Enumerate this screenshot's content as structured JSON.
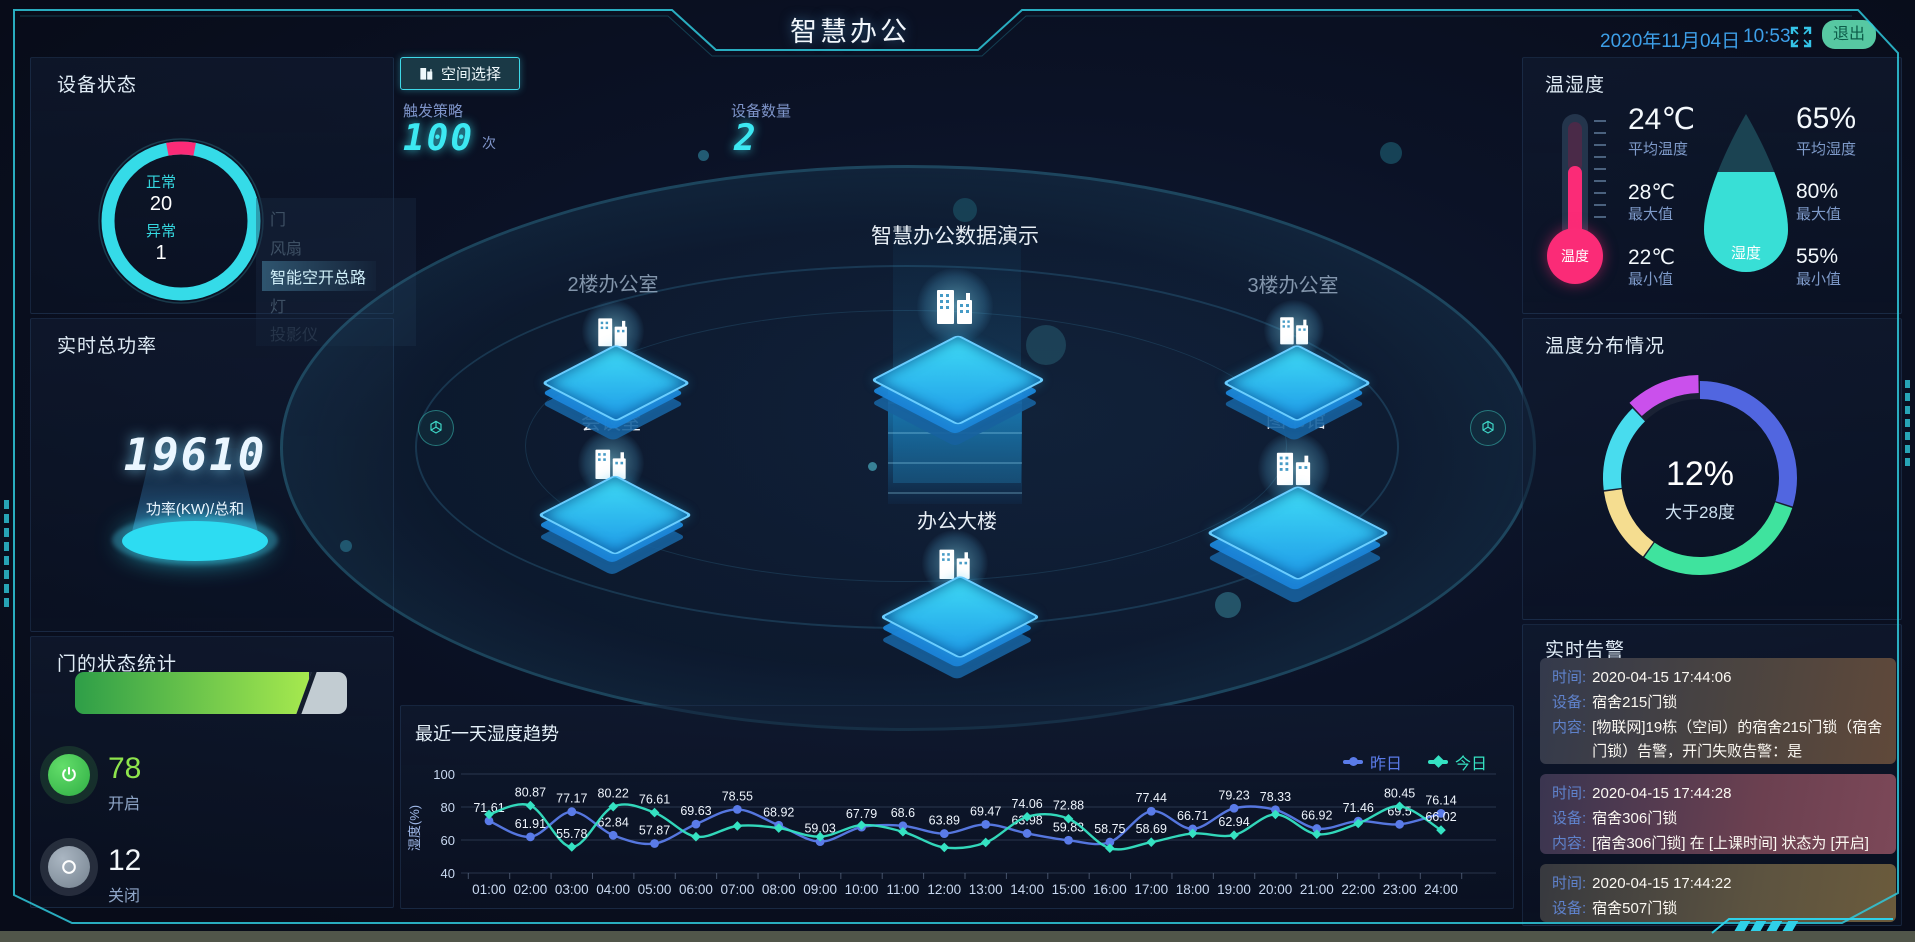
{
  "header": {
    "title": "智慧办公",
    "date": "2020年11月04日",
    "time": "10:53",
    "exit": "退出"
  },
  "left": {
    "device_status": {
      "title": "设备状态",
      "normal_label": "正常",
      "normal_value": "20",
      "abnormal_label": "异常",
      "abnormal_value": "1",
      "ring_color": "#35dbe8",
      "alert_color": "#fb2b77",
      "legend": [
        {
          "label": "门",
          "active": false
        },
        {
          "label": "风扇",
          "active": false
        },
        {
          "label": "智能空开总路",
          "active": true
        },
        {
          "label": "灯",
          "active": false
        },
        {
          "label": "投影仪",
          "active": false
        }
      ]
    },
    "power": {
      "title": "实时总功率",
      "value": "19610",
      "unit": "功率(KW)/总和"
    },
    "door_stats": {
      "title": "门的状态统计",
      "open_value": "78",
      "open_label": "开启",
      "closed_value": "12",
      "closed_label": "关闭"
    }
  },
  "center": {
    "space_button": "空间选择",
    "trigger_label": "触发策略",
    "trigger_value": "100",
    "trigger_unit": "次",
    "device_label": "设备数量",
    "device_value": "2",
    "nodes": {
      "main": "智慧办公数据演示",
      "floor2": "2楼办公室",
      "meeting": "会议室",
      "building": "办公大楼",
      "floor3": "3楼办公室",
      "library": "图书馆"
    }
  },
  "right": {
    "temp_humidity": {
      "title": "温湿度",
      "temp_badge": "温度",
      "humidity_badge": "湿度",
      "temp": {
        "avg": "24℃",
        "avg_label": "平均温度",
        "max": "28℃",
        "max_label": "最大值",
        "min": "22℃",
        "min_label": "最小值"
      },
      "humidity": {
        "avg": "65%",
        "avg_label": "平均湿度",
        "max": "80%",
        "max_label": "最大值",
        "min": "55%",
        "min_label": "最小值"
      }
    },
    "temp_distribution": {
      "title": "温度分布情况",
      "center_value": "12%",
      "center_label": "大于28度",
      "segments": [
        {
          "name": "below-range-1",
          "value": 30,
          "color": "#5166e0",
          "popped": false
        },
        {
          "name": "below-range-2",
          "value": 30,
          "color": "#3fe39e",
          "popped": false
        },
        {
          "name": "below-range-3",
          "value": 13,
          "color": "#f5dd90",
          "popped": false
        },
        {
          "name": "below-range-4",
          "value": 15,
          "color": "#48dcee",
          "popped": false
        },
        {
          "name": "above-28",
          "value": 12,
          "color": "#ca50ec",
          "popped": true
        }
      ]
    },
    "alerts": {
      "title": "实时告警",
      "time_label": "时间:",
      "device_label": "设备:",
      "content_label": "内容:",
      "items": [
        {
          "time": "2020-04-15 17:44:06",
          "device": "宿舍215门锁",
          "content": "[物联网]19栋（空间）的宿舍215门锁（宿舍门锁）告警，开门失败告警：是"
        },
        {
          "time": "2020-04-15 17:44:28",
          "device": "宿舍306门锁",
          "content": "[宿舍306门锁] 在 [上课时间] 状态为 [开启]"
        },
        {
          "time": "2020-04-15 17:44:22",
          "device": "宿舍507门锁",
          "content": ""
        }
      ]
    }
  },
  "chart_data": {
    "type": "line",
    "title": "最近一天湿度趋势",
    "ylabel": "湿度(%)",
    "ylim": [
      40,
      100
    ],
    "yticks": [
      40,
      60,
      80,
      100
    ],
    "grid": true,
    "legend_position": "top-right",
    "categories": [
      "01:00",
      "02:00",
      "03:00",
      "04:00",
      "05:00",
      "06:00",
      "07:00",
      "08:00",
      "09:00",
      "10:00",
      "11:00",
      "12:00",
      "13:00",
      "14:00",
      "15:00",
      "16:00",
      "17:00",
      "18:00",
      "19:00",
      "20:00",
      "21:00",
      "22:00",
      "23:00",
      "24:00"
    ],
    "series": [
      {
        "name": "昨日",
        "color": "#5a7be8",
        "marker": "circle",
        "values": [
          71.61,
          61.91,
          77.17,
          62.84,
          57.87,
          69.63,
          78.55,
          68.92,
          59.03,
          67.79,
          68.6,
          63.89,
          69.47,
          63.98,
          59.83,
          58.75,
          77.44,
          66.71,
          79.23,
          78.33,
          66.92,
          71.46,
          69.5,
          76.14
        ],
        "labeled": [
          true,
          true,
          true,
          true,
          true,
          true,
          true,
          true,
          true,
          true,
          true,
          true,
          true,
          true,
          true,
          true,
          true,
          true,
          true,
          true,
          true,
          true,
          true,
          true
        ]
      },
      {
        "name": "今日",
        "color": "#35e2c2",
        "marker": "diamond",
        "values": [
          75.5,
          80.87,
          55.78,
          80.22,
          76.61,
          62,
          68.5,
          67.2,
          62,
          69,
          65,
          55.5,
          58.5,
          74.06,
          72.88,
          55,
          58.69,
          64,
          62.94,
          75.5,
          63.5,
          70,
          80.45,
          66.02
        ],
        "labeled": [
          false,
          true,
          true,
          true,
          true,
          false,
          false,
          false,
          false,
          false,
          false,
          false,
          false,
          true,
          true,
          false,
          true,
          false,
          true,
          false,
          false,
          false,
          true,
          true
        ]
      }
    ]
  }
}
